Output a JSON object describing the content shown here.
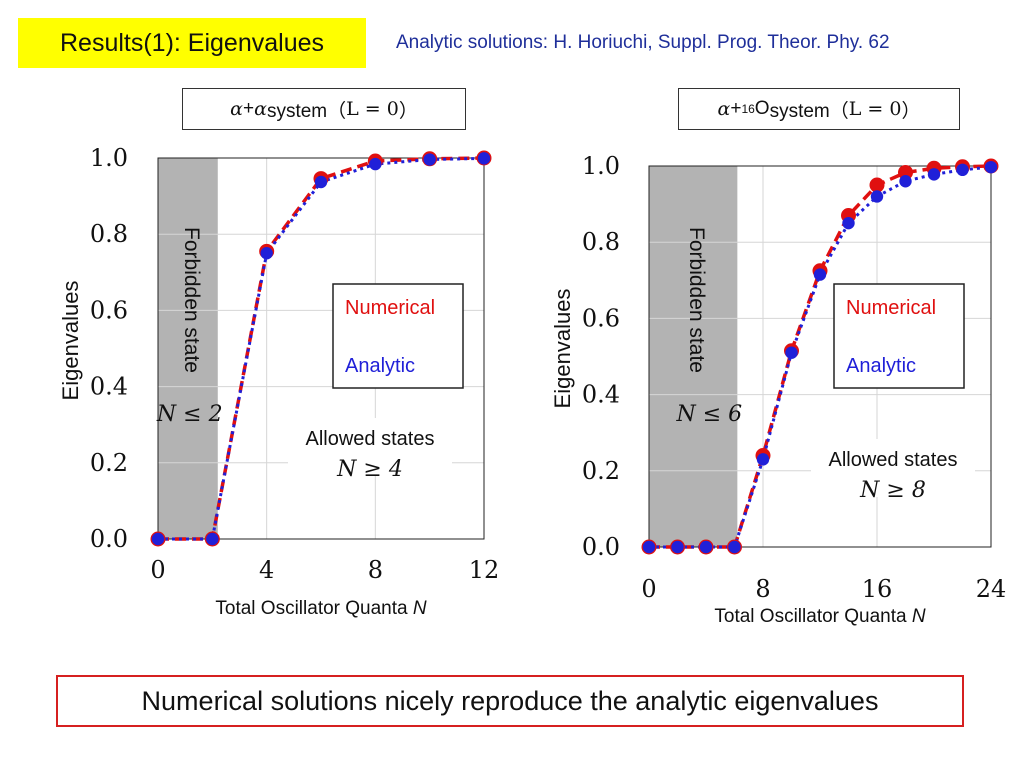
{
  "title": "Results(1): Eigenvalues",
  "citation": "Analytic solutions: H. Horiuchi, Suppl. Prog. Theor. Phy. 62",
  "summary": "Numerical solutions nicely reproduce the analytic eigenvalues",
  "colors": {
    "numerical": "#e01010",
    "analytic": "#2020d8",
    "forbidden": "#b3b3b3",
    "title_bg": "#ffff00",
    "summary_border": "#d62020"
  },
  "chart_data": [
    {
      "type": "line",
      "panel_title": {
        "prefix": "α",
        "plus": " + ",
        "nucleus": "α",
        "suffix": " system（",
        "math": "L = 0",
        "close": "）"
      },
      "xlabel": "Total Oscillator Quanta",
      "xlabel_var": "N",
      "ylabel": "Eigenvalues",
      "xlim": [
        0,
        12
      ],
      "ylim": [
        0,
        1
      ],
      "xticks": [
        "0",
        "4",
        "8",
        "12"
      ],
      "yticks": [
        "0.0",
        "0.2",
        "0.4",
        "0.6",
        "0.8",
        "1.0"
      ],
      "forbidden_region_max_N": 2.2,
      "forbidden_label": "Forbidden state",
      "forbidden_condition": "N ≤ 2",
      "allowed_label": "Allowed states",
      "allowed_condition": "N ≥ 4",
      "legend": [
        "Numerical",
        "Analytic"
      ],
      "series": [
        {
          "name": "Numerical",
          "x": [
            0,
            2,
            4,
            6,
            8,
            10,
            12
          ],
          "y": [
            0.0,
            0.0,
            0.755,
            0.946,
            0.992,
            0.998,
            1.0
          ]
        },
        {
          "name": "Analytic",
          "x": [
            0,
            2,
            4,
            6,
            8,
            10,
            12
          ],
          "y": [
            0.0,
            0.0,
            0.75,
            0.937,
            0.984,
            0.996,
            0.999
          ]
        }
      ]
    },
    {
      "type": "line",
      "panel_title": {
        "prefix": "α",
        "plus": " + ",
        "nucleus_mass": "16",
        "nucleus": "O",
        "suffix": " system（",
        "math": "L = 0",
        "close": "）"
      },
      "xlabel": "Total Oscillator Quanta",
      "xlabel_var": "N",
      "ylabel": "Eigenvalues",
      "xlim": [
        0,
        24
      ],
      "ylim": [
        0,
        1
      ],
      "xticks": [
        "0",
        "8",
        "16",
        "24"
      ],
      "yticks": [
        "0.0",
        "0.2",
        "0.4",
        "0.6",
        "0.8",
        "1.0"
      ],
      "forbidden_region_max_N": 6.2,
      "forbidden_label": "Forbidden state",
      "forbidden_condition": "N ≤ 6",
      "allowed_label": "Allowed states",
      "allowed_condition": "N ≥ 8",
      "legend": [
        "Numerical",
        "Analytic"
      ],
      "series": [
        {
          "name": "Numerical",
          "x": [
            0,
            2,
            4,
            6,
            8,
            10,
            12,
            14,
            16,
            18,
            20,
            22,
            24
          ],
          "y": [
            0.0,
            0.0,
            0.0,
            0.0,
            0.24,
            0.515,
            0.725,
            0.87,
            0.95,
            0.983,
            0.994,
            0.998,
            1.0
          ]
        },
        {
          "name": "Analytic",
          "x": [
            0,
            2,
            4,
            6,
            8,
            10,
            12,
            14,
            16,
            18,
            20,
            22,
            24
          ],
          "y": [
            0.0,
            0.0,
            0.0,
            0.0,
            0.23,
            0.51,
            0.715,
            0.85,
            0.92,
            0.96,
            0.978,
            0.99,
            0.997
          ]
        }
      ]
    }
  ]
}
